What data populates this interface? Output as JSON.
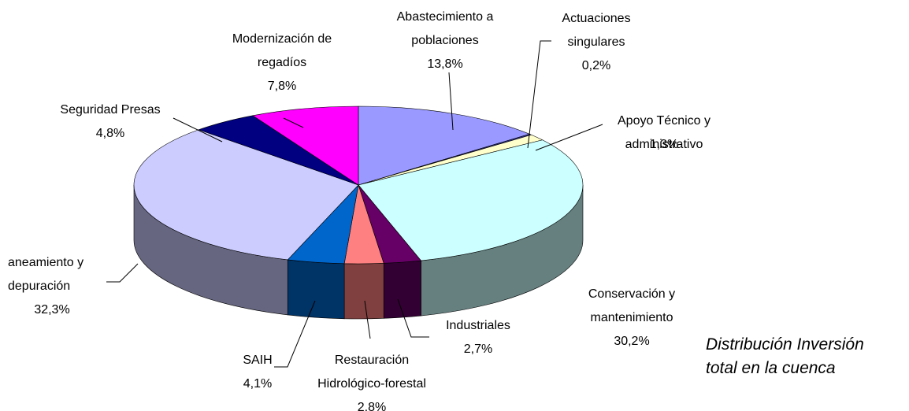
{
  "chart_data": {
    "type": "pie",
    "caption": "Distribución Inversión\ntotal en la cuenca",
    "categories": [
      "Abastecimiento a\npoblaciones",
      "Actuaciones\nsingulares",
      "Apoyo Técnico y\nadministrativo",
      "Conservación y\nmantenimiento",
      "Industriales",
      "Restauración\nHidrológico-forestal",
      "SAIH",
      "aneamiento y\ndepuración",
      "Seguridad Presas",
      "Modernización de\nregadíos"
    ],
    "values": [
      13.8,
      0.2,
      1.3,
      30.2,
      2.7,
      2.8,
      4.1,
      32.3,
      4.8,
      7.8
    ],
    "value_labels": [
      "13,8%",
      "0,2%",
      "1,3%",
      "30,2%",
      "2,7%",
      "2,8%",
      "4,1%",
      "32,3%",
      "4,8%",
      "7,8%"
    ],
    "colors": [
      "#9999ff",
      "#333399",
      "#ffffcc",
      "#ccffff",
      "#660066",
      "#ff8080",
      "#0066cc",
      "#ccccff",
      "#000080",
      "#ff00ff"
    ]
  }
}
